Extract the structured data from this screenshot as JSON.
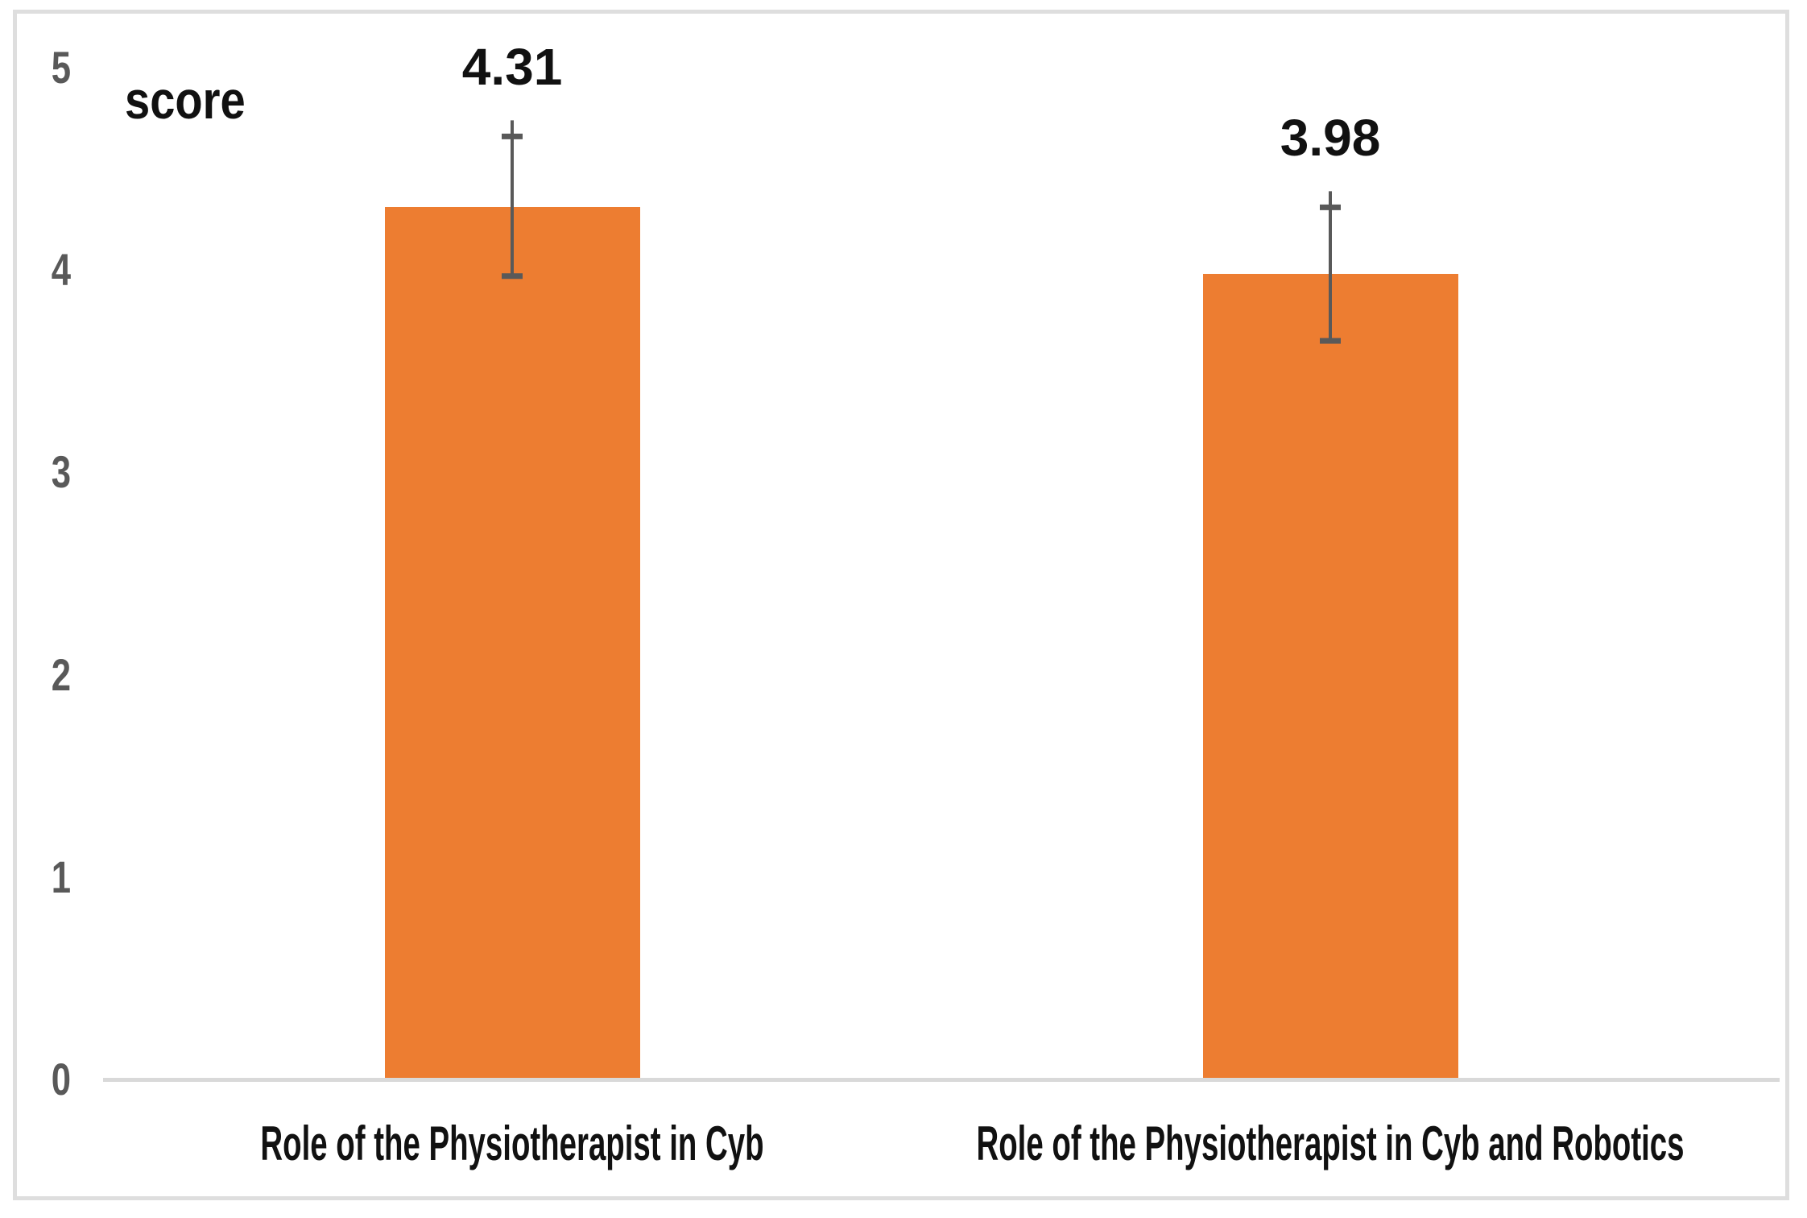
{
  "chart_data": {
    "type": "bar",
    "title": "",
    "ylabel": "score",
    "xlabel": "",
    "categories": [
      "Role of the Physiotherapist in Cyb",
      "Role of the Physiotherapist in Cyb and Robotics"
    ],
    "values": [
      4.31,
      3.98
    ],
    "data_labels": [
      "4.31",
      "3.98"
    ],
    "error_bars": [
      {
        "low": 3.97,
        "high": 4.66
      },
      {
        "low": 3.65,
        "high": 4.31
      }
    ],
    "ylim": [
      0,
      5
    ],
    "yticks": [
      5,
      4,
      3,
      2,
      1,
      0
    ],
    "ytick_labels": [
      "5",
      "4",
      "3",
      "2",
      "1",
      "0"
    ],
    "grid": false,
    "legend": "none",
    "colors": {
      "bar": "#ED7D31",
      "error_bar": "#595959",
      "tick_label": "#595959",
      "axis_line": "#D9D9D9",
      "frame_border": "#DEDEDE",
      "text": "#111111",
      "background": "#FFFFFF"
    }
  }
}
